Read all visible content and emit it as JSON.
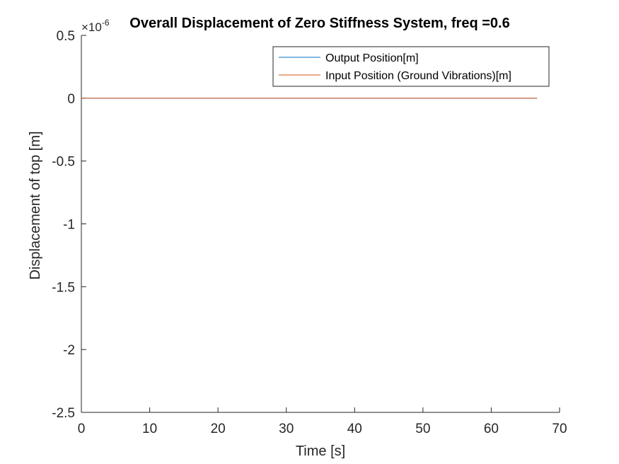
{
  "chart_data": {
    "type": "line",
    "title": "Overall Displacement of Zero Stiffness System, freq =0.6",
    "xlabel": "Time [s]",
    "ylabel": "Displacement of top [m]",
    "xlim": [
      0,
      70
    ],
    "ylim": [
      -2.5,
      0.5
    ],
    "x_ticks": [
      "0",
      "10",
      "20",
      "30",
      "40",
      "50",
      "60",
      "70"
    ],
    "y_ticks": [
      "0.5",
      "0",
      "-0.5",
      "-1",
      "-1.5",
      "-2",
      "-2.5"
    ],
    "y_exponent": {
      "base": "×10",
      "power": "-6"
    },
    "legend_position": "top-right",
    "series": [
      {
        "name": "Output Position[m]",
        "color": "#0072BD",
        "x": [
          0,
          66.7
        ],
        "y": [
          0,
          0
        ]
      },
      {
        "name": "Input Position (Ground Vibrations)[m]",
        "color": "#D95319",
        "x": [
          0,
          66.7
        ],
        "y": [
          0,
          0
        ]
      }
    ]
  }
}
